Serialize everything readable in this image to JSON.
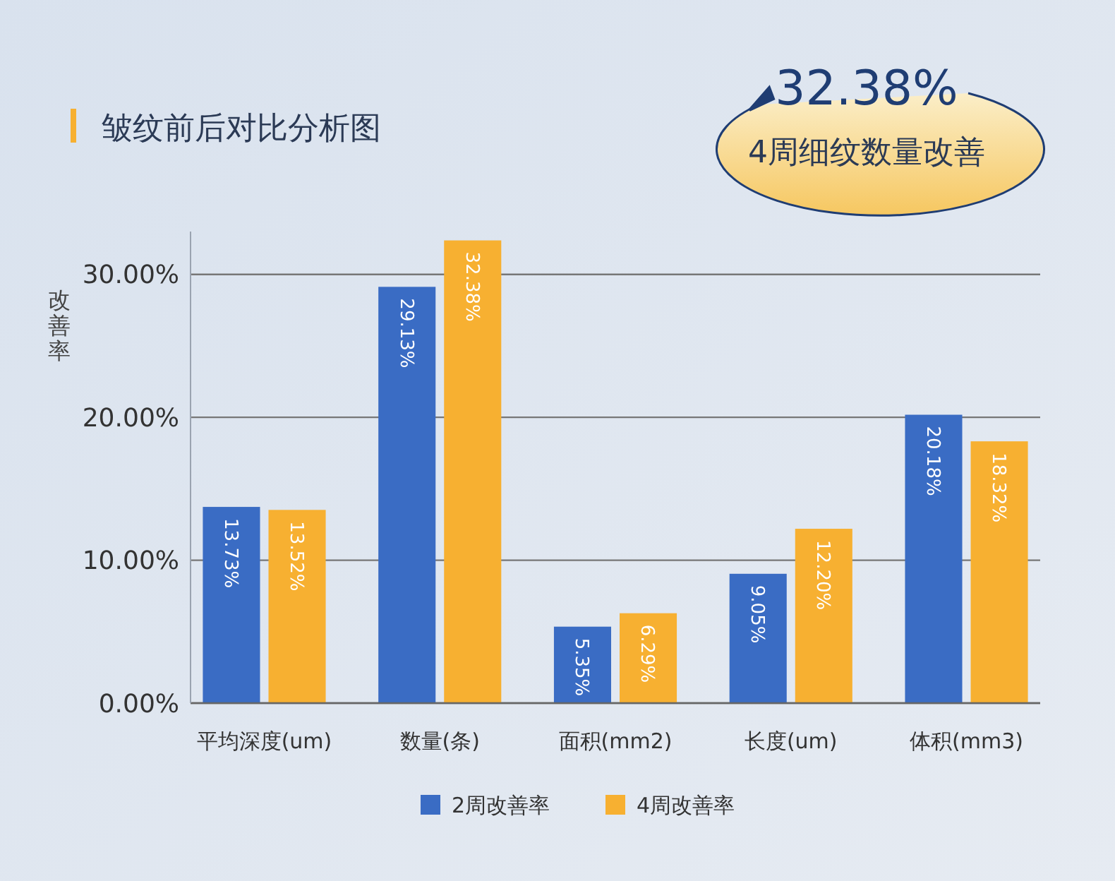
{
  "chart_data": {
    "type": "bar",
    "title": "皱纹前后对比分析图",
    "ylabel": "改善率",
    "annotations": [
      "32.38%",
      "4周细纹数量改善"
    ],
    "categories": [
      "平均深度(um)",
      "数量(条)",
      "面积(mm2)",
      "长度(um)",
      "体积(mm3)"
    ],
    "series": [
      {
        "name": "2周改善率",
        "color": "#3a6cc4",
        "values": [
          13.73,
          29.13,
          5.35,
          9.05,
          20.18
        ],
        "value_labels": [
          "13.73%",
          "29.13%",
          "5.35%",
          "9.05%",
          "20.18%"
        ]
      },
      {
        "name": "4周改善率",
        "color": "#f7b031",
        "values": [
          13.52,
          32.38,
          6.29,
          12.2,
          18.32
        ],
        "value_labels": [
          "13.52%",
          "32.38%",
          "6.29%",
          "12.20%",
          "18.32%"
        ]
      }
    ],
    "ylim": [
      0,
      33
    ],
    "yticks": [
      {
        "value": 0,
        "label": "0.00%"
      },
      {
        "value": 10,
        "label": "10.00%"
      },
      {
        "value": 20,
        "label": "20.00%"
      },
      {
        "value": 30,
        "label": "30.00%"
      }
    ],
    "grid": "y",
    "legend": "bottom"
  }
}
